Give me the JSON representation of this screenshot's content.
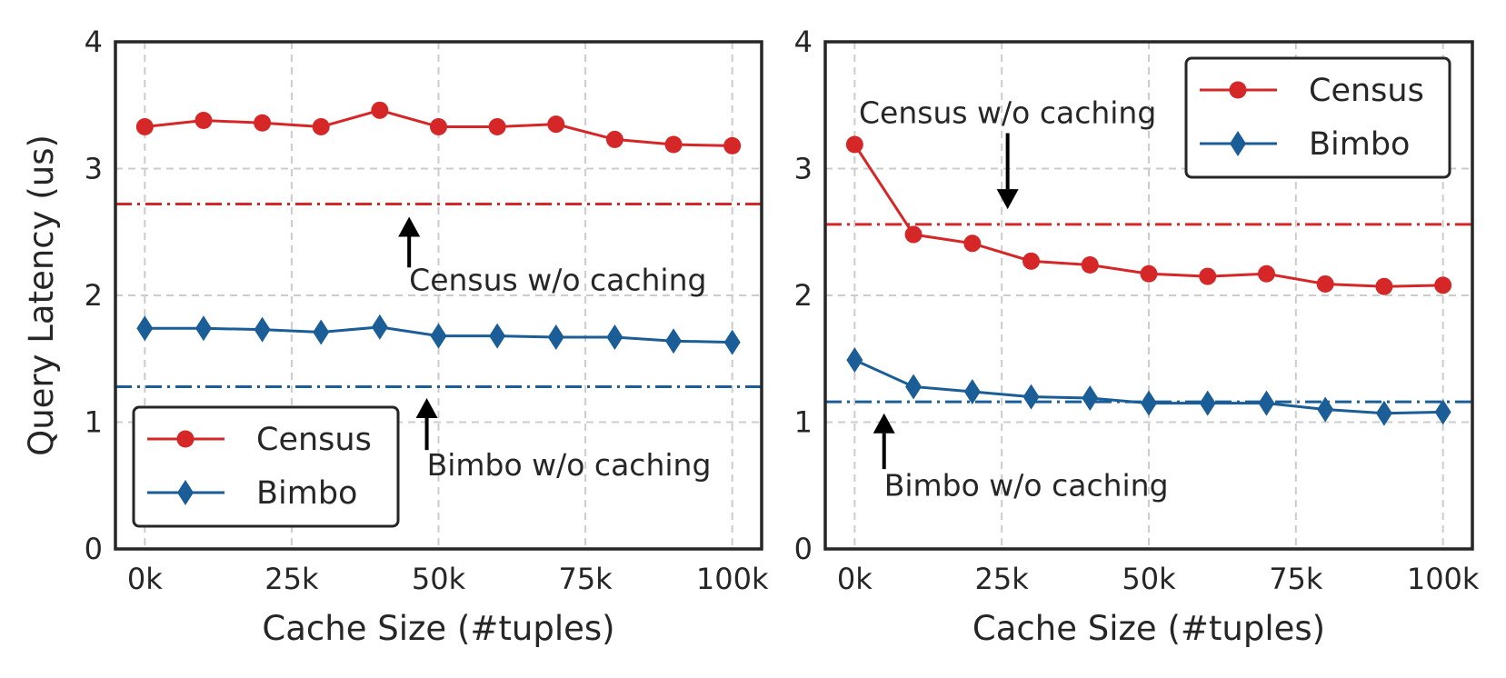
{
  "chart_data": [
    {
      "type": "line",
      "title": "",
      "xlabel": "Cache Size (#tuples)",
      "ylabel": "Query Latency (us)",
      "x": [
        0,
        10000,
        20000,
        30000,
        40000,
        50000,
        60000,
        70000,
        80000,
        90000,
        100000
      ],
      "xlim": [
        -5000,
        105000
      ],
      "ylim": [
        0,
        4
      ],
      "xticks": [
        0,
        25000,
        50000,
        75000,
        100000
      ],
      "xtick_labels": [
        "0k",
        "25k",
        "50k",
        "75k",
        "100k"
      ],
      "yticks": [
        0,
        1,
        2,
        3,
        4
      ],
      "ytick_labels": [
        "0",
        "1",
        "2",
        "3",
        "4"
      ],
      "grid": true,
      "legend_position": "lower-left",
      "series": [
        {
          "name": "Census",
          "color": "#d62728",
          "marker": "circle",
          "values": [
            3.33,
            3.38,
            3.36,
            3.33,
            3.46,
            3.33,
            3.33,
            3.35,
            3.23,
            3.19,
            3.18
          ]
        },
        {
          "name": "Bimbo",
          "color": "#1a5d97",
          "marker": "diamond",
          "values": [
            1.74,
            1.74,
            1.73,
            1.71,
            1.75,
            1.68,
            1.68,
            1.67,
            1.67,
            1.64,
            1.63
          ]
        }
      ],
      "reference_lines": [
        {
          "label": "Census w/o caching",
          "y": 2.72,
          "color": "#d62728",
          "style": "dash-dot"
        },
        {
          "label": "Bimbo w/o caching",
          "y": 1.28,
          "color": "#1a5d97",
          "style": "dash-dot"
        }
      ],
      "annotations": [
        {
          "text": "Census w/o caching",
          "arrow_x": 45000,
          "arrow_from_y": 2.22,
          "arrow_to_y": 2.62,
          "text_x": 45000,
          "text_y": 2.04,
          "anchor": "start"
        },
        {
          "text": "Bimbo w/o caching",
          "arrow_x": 48000,
          "arrow_from_y": 0.78,
          "arrow_to_y": 1.19,
          "text_x": 48000,
          "text_y": 0.58,
          "anchor": "start"
        }
      ]
    },
    {
      "type": "line",
      "title": "",
      "xlabel": "Cache Size (#tuples)",
      "ylabel": "",
      "x": [
        0,
        10000,
        20000,
        30000,
        40000,
        50000,
        60000,
        70000,
        80000,
        90000,
        100000
      ],
      "xlim": [
        -5000,
        105000
      ],
      "ylim": [
        0,
        4
      ],
      "xticks": [
        0,
        25000,
        50000,
        75000,
        100000
      ],
      "xtick_labels": [
        "0k",
        "25k",
        "50k",
        "75k",
        "100k"
      ],
      "yticks": [
        0,
        1,
        2,
        3,
        4
      ],
      "ytick_labels": [
        "0",
        "1",
        "2",
        "3",
        "4"
      ],
      "grid": true,
      "legend_position": "upper-right",
      "series": [
        {
          "name": "Census",
          "color": "#d62728",
          "marker": "circle",
          "values": [
            3.19,
            2.48,
            2.41,
            2.27,
            2.24,
            2.17,
            2.15,
            2.17,
            2.09,
            2.07,
            2.08
          ]
        },
        {
          "name": "Bimbo",
          "color": "#1a5d97",
          "marker": "diamond",
          "values": [
            1.49,
            1.28,
            1.24,
            1.2,
            1.19,
            1.15,
            1.15,
            1.15,
            1.1,
            1.07,
            1.08
          ]
        }
      ],
      "reference_lines": [
        {
          "label": "Census w/o caching",
          "y": 2.56,
          "color": "#d62728",
          "style": "dash-dot"
        },
        {
          "label": "Bimbo w/o caching",
          "y": 1.16,
          "color": "#1a5d97",
          "style": "dash-dot"
        }
      ],
      "annotations": [
        {
          "text": "Census w/o caching",
          "arrow_x": 26000,
          "arrow_from_y": 3.28,
          "arrow_to_y": 2.68,
          "text_x": 26000,
          "text_y": 3.36,
          "anchor": "middle"
        },
        {
          "text": "Bimbo w/o caching",
          "arrow_x": 5000,
          "arrow_from_y": 0.63,
          "arrow_to_y": 1.07,
          "text_x": 5000,
          "text_y": 0.42,
          "anchor": "start"
        }
      ]
    }
  ]
}
